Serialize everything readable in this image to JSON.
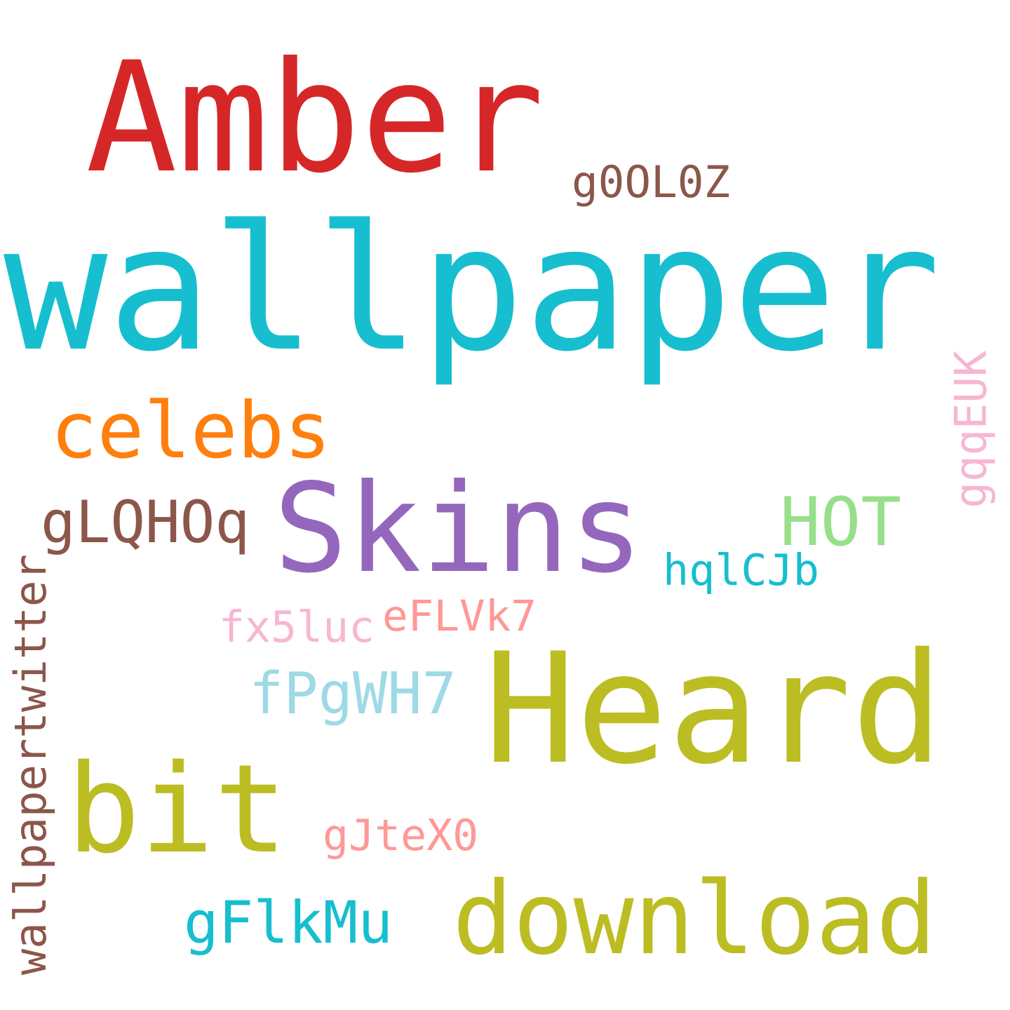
{
  "words": [
    {
      "key": "amber",
      "text": "Amber",
      "color": "#d62728"
    },
    {
      "key": "wallpaper",
      "text": "wallpaper",
      "color": "#17becf"
    },
    {
      "key": "g0ol0z",
      "text": "g0OL0Z",
      "color": "#8c564b"
    },
    {
      "key": "celebs",
      "text": "celebs",
      "color": "#ff7f0e"
    },
    {
      "key": "skins",
      "text": "Skins",
      "color": "#9467bd"
    },
    {
      "key": "glqhoq",
      "text": "gLQHOq",
      "color": "#8c564b"
    },
    {
      "key": "hot",
      "text": "HOT",
      "color": "#98df8a"
    },
    {
      "key": "gqqeuk",
      "text": "gqqEUK",
      "color": "#f7b6d2"
    },
    {
      "key": "hqlcjb",
      "text": "hqlCJb",
      "color": "#17becf"
    },
    {
      "key": "wallpapertwitter",
      "text": "wallpapertwitter",
      "color": "#8c564b"
    },
    {
      "key": "fx5luc",
      "text": "fx5luc",
      "color": "#f7b6d2"
    },
    {
      "key": "eflvk7",
      "text": "eFLVk7",
      "color": "#ff9896"
    },
    {
      "key": "fpgwh7",
      "text": "fPgWH7",
      "color": "#9edae5"
    },
    {
      "key": "heard",
      "text": "Heard",
      "color": "#bcbd22"
    },
    {
      "key": "bit",
      "text": "bit",
      "color": "#bcbd22"
    },
    {
      "key": "gjtex0",
      "text": "gJteX0",
      "color": "#ff9896"
    },
    {
      "key": "gflkmu",
      "text": "gFlkMu",
      "color": "#17becf"
    },
    {
      "key": "download",
      "text": "download",
      "color": "#bcbd22"
    }
  ]
}
